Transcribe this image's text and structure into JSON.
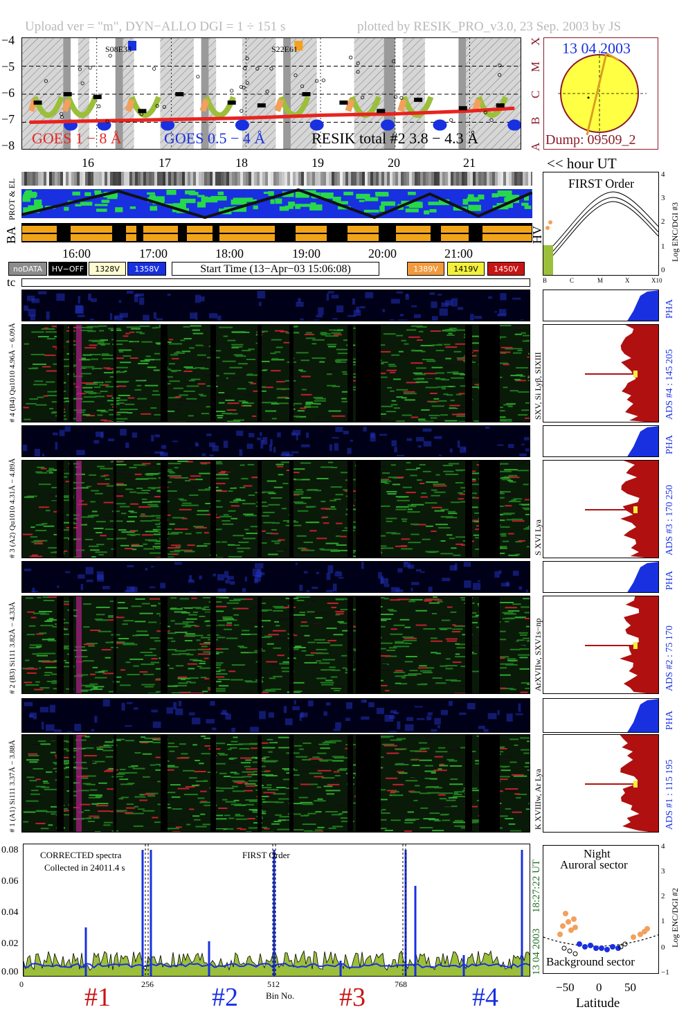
{
  "header": {
    "left": "Upload ver = \"m\", DYN−ALLO DGI =   1 ÷ 151 s",
    "right": "plotted by RESIK_PRO_v3.0, 23 Sep. 2003 by JS"
  },
  "goes": {
    "yticks": [
      "−4",
      "−5",
      "−6",
      "−7",
      "−8"
    ],
    "class_labels": [
      "X",
      "M",
      "C",
      "B",
      "A"
    ],
    "label_red": "GOES 1 − 8 Å",
    "label_blue": "GOES 0.5 − 4 Å",
    "label_black": "RESIK total #2  3.8 − 4.3 Å",
    "marker1": "S08E33",
    "marker2": "S22E61",
    "colors": {
      "red": "#e8231f",
      "blue": "#1830e0",
      "green": "#9bbf3a",
      "orange": "#f2a05c"
    }
  },
  "sun": {
    "date": "13 04 2003",
    "dump": "Dump: 09509_2"
  },
  "hours_top": [
    "16",
    "17",
    "18",
    "19",
    "20",
    "21"
  ],
  "hour_ut": "<< hour UT",
  "aux_labels": {
    "prot_el": "PROT & EL",
    "ba": "BA",
    "hv": "HV"
  },
  "first_order": {
    "title": "FIRST Order",
    "ylabel": "Log ENC/DGI #3",
    "yticks": [
      "4",
      "3",
      "2",
      "1",
      "0"
    ],
    "xticks": [
      "B",
      "C",
      "M",
      "X",
      "X10"
    ]
  },
  "times": [
    "16:00",
    "17:00",
    "18:00",
    "19:00",
    "20:00",
    "21:00"
  ],
  "legend": [
    {
      "label": "noDATA",
      "bg": "#8c8c8c",
      "fg": "#ffffff"
    },
    {
      "label": "HV−OFF",
      "bg": "#000000",
      "fg": "#ffffff"
    },
    {
      "label": "1328V",
      "bg": "#fffbd0",
      "fg": "#000000"
    },
    {
      "label": "1358V",
      "bg": "#1830e0",
      "fg": "#ffffff"
    },
    {
      "label": "1389V",
      "bg": "#f29a3c",
      "fg": "#ffffff"
    },
    {
      "label": "1419V",
      "bg": "#f4f03a",
      "fg": "#000000"
    },
    {
      "label": "1450V",
      "bg": "#c81414",
      "fg": "#ffffff"
    }
  ],
  "start_time": "Start Time (13−Apr−03 15:06:08)",
  "tc": "tc",
  "channels": [
    {
      "pha_label": "# 4 (B4)  Qu1010  4.96Å − 6.09Å",
      "line_label": "SXV, Si Lyβ, SIXIII",
      "ads": "ADS #4 :   145 205",
      "pha": "PHA"
    },
    {
      "pha_label": "# 3 (A2)  Qu1010  4.31Å − 4.89Å",
      "line_label": "S XVI Lya",
      "ads": "ADS #3 :   170 250",
      "pha": "PHA"
    },
    {
      "pha_label": "# 2 (B3)  Si111  3.82Å − 4.33Å",
      "line_label": "ArXVIIw, SXV1s−np",
      "ads": "ADS #2 :   75 170",
      "pha": "PHA"
    },
    {
      "pha_label": "# 1 (A1)  Si111  3.37Å − 3.88Å",
      "line_label": "K XVIIIw, Ar Lya",
      "ads": "ADS #1 :   115 195",
      "pha": "PHA"
    }
  ],
  "spectrum": {
    "text1": "CORRECTED spectra",
    "text2": "Collected in 24011.4 s",
    "text3": "FIRST Order",
    "yticks": [
      "0.08",
      "0.06",
      "0.04",
      "0.02",
      "0.00"
    ],
    "xticks": [
      "0",
      "256",
      "512",
      "768"
    ],
    "xlabel": "Bin No.",
    "date": "13 04 2003",
    "time": "18:27:22 UT",
    "groups": [
      {
        "label": "#1",
        "color": "#c81414"
      },
      {
        "label": "#2",
        "color": "#1830e0"
      },
      {
        "label": "#3",
        "color": "#c81414"
      },
      {
        "label": "#4",
        "color": "#1830e0"
      }
    ]
  },
  "latitude_panel": {
    "title1": "Night",
    "title2": "Auroral sector",
    "bottom": "Background sector",
    "xlabel": "Latitude",
    "ylabel": "Log ENC/DGI #2",
    "xticks": [
      "−50",
      "0",
      "50"
    ],
    "yticks": [
      "4",
      "3",
      "2",
      "1",
      "0",
      "−1"
    ]
  },
  "chart_data": {
    "type": "line",
    "title": "",
    "series": [
      {
        "name": "GOES 1 − 8 Å",
        "x": [
          15.1,
          16.0,
          17.0,
          18.0,
          19.0,
          20.0,
          21.0,
          21.6
        ],
        "values": [
          -7.0,
          -6.95,
          -6.9,
          -6.85,
          -6.75,
          -6.7,
          -6.6,
          -6.5
        ]
      },
      {
        "name": "RESIK total #2  3.8 − 4.3 Å",
        "x": [
          15.2,
          15.6,
          16.0,
          16.6,
          17.1,
          17.8,
          18.2,
          18.8,
          19.3,
          19.8,
          20.3,
          20.9,
          21.4
        ],
        "values": [
          -6.3,
          -6.0,
          -6.1,
          -6.6,
          -6.0,
          -6.3,
          -6.4,
          -6.0,
          -6.3,
          -6.6,
          -6.2,
          -6.5,
          -6.4
        ]
      }
    ],
    "xlabel": "<< hour UT",
    "ylim": [
      -8,
      -4
    ]
  }
}
